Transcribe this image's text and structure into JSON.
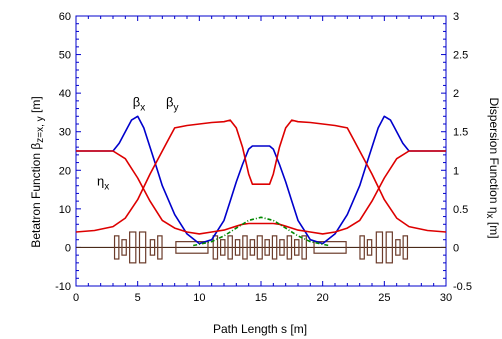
{
  "chart_data": {
    "type": "line",
    "xlabel": "Path Length s [m]",
    "ylabel_left": {
      "prefix": "Betatron Function β",
      "sub": "z=x, y",
      "suffix": " [m]"
    },
    "ylabel_right": {
      "prefix": "Dispersion Function η",
      "sub": "x",
      "suffix": " [m]"
    },
    "xlim": [
      0,
      30
    ],
    "ylim_left": [
      -10,
      60
    ],
    "ylim_right": [
      -0.5,
      3
    ],
    "x_ticks": [
      "0",
      "5",
      "10",
      "15",
      "20",
      "25",
      "30"
    ],
    "y_ticks_left": [
      "-10",
      "0",
      "10",
      "20",
      "30",
      "40",
      "50",
      "60"
    ],
    "y_ticks_right": [
      "-0.5",
      "0",
      "0.5",
      "1",
      "1.5",
      "2",
      "2.5",
      "3"
    ],
    "annotations": [
      {
        "base": "β",
        "sub": "x",
        "x": 4.6,
        "y": 36.5
      },
      {
        "base": "β",
        "sub": "y",
        "x": 7.3,
        "y": 36.5
      },
      {
        "base": "η",
        "sub": "x",
        "x": 1.7,
        "y": 16
      }
    ],
    "series": [
      {
        "key": "beta_x",
        "color": "#0000cc",
        "axis": "left",
        "x": [
          0,
          3,
          3.5,
          4,
          4.5,
          5,
          5.5,
          6,
          6.5,
          7,
          8,
          9,
          10,
          11,
          12,
          12.5,
          13,
          13.5,
          14,
          14.3,
          15,
          15.7,
          16,
          16.5,
          17,
          17.5,
          18,
          19,
          20,
          21,
          22,
          23,
          23.5,
          24,
          24.5,
          25,
          25.5,
          26,
          26.5,
          27,
          30
        ],
        "y": [
          25,
          25,
          27,
          30,
          33,
          34,
          31,
          26,
          21,
          16,
          8.5,
          3.5,
          1,
          2,
          7,
          12,
          17,
          21.5,
          25.5,
          26.3,
          26.3,
          26.3,
          25.5,
          21.5,
          17,
          12,
          7,
          2,
          1,
          3.5,
          8.5,
          16,
          21,
          26,
          31,
          34,
          33,
          30,
          27,
          25,
          25
        ]
      },
      {
        "key": "beta_y",
        "color": "#dd0000",
        "axis": "left",
        "x": [
          0,
          3,
          4,
          5,
          6,
          7,
          8,
          9,
          10,
          11,
          12,
          12.5,
          13,
          13.5,
          14,
          14.3,
          15,
          15.7,
          16,
          16.5,
          17,
          17.5,
          18,
          19,
          20,
          21,
          22,
          23,
          24,
          25,
          26,
          27,
          30
        ],
        "y": [
          25,
          25,
          23,
          18,
          12,
          7,
          5,
          4,
          3.5,
          4,
          4.5,
          5,
          5.5,
          6,
          6.2,
          6.2,
          6.2,
          6.2,
          6.2,
          6,
          5.5,
          5,
          4.5,
          4,
          3.5,
          4,
          5,
          7,
          12,
          18,
          23,
          25,
          25
        ]
      },
      {
        "key": "eta_x",
        "color": "#dd0000",
        "axis": "right",
        "x": [
          0,
          1.5,
          3,
          4,
          5,
          6,
          7,
          7.5,
          8,
          9,
          10,
          11,
          12,
          12.5,
          13,
          13.5,
          14,
          14.3,
          15,
          15.7,
          16,
          16.5,
          17,
          17.5,
          18,
          19,
          20,
          21,
          22,
          22.5,
          23,
          24,
          25,
          26,
          27,
          28.5,
          30
        ],
        "y": [
          0.2,
          0.22,
          0.27,
          0.38,
          0.62,
          0.95,
          1.25,
          1.4,
          1.55,
          1.58,
          1.6,
          1.62,
          1.63,
          1.65,
          1.55,
          1.3,
          0.95,
          0.82,
          0.82,
          0.82,
          0.95,
          1.3,
          1.55,
          1.65,
          1.63,
          1.62,
          1.6,
          1.58,
          1.55,
          1.4,
          1.25,
          0.95,
          0.62,
          0.38,
          0.27,
          0.22,
          0.2
        ]
      },
      {
        "key": "green_dashed",
        "color": "#008800",
        "axis": "left",
        "style": "dash-dot",
        "x": [
          9.5,
          10,
          11,
          12,
          13,
          14,
          15,
          16,
          17,
          18,
          19,
          20,
          20.5
        ],
        "y": [
          0.5,
          0.8,
          1.5,
          3,
          5,
          7,
          7.8,
          7,
          5,
          3,
          1.5,
          0.8,
          0.5
        ]
      }
    ],
    "lattice": {
      "baseline_y": 0,
      "elements": [
        {
          "s": 3.3,
          "w": 0.35,
          "h": 3
        },
        {
          "s": 3.9,
          "w": 0.35,
          "h": 2
        },
        {
          "s": 4.6,
          "w": 0.5,
          "h": 4
        },
        {
          "s": 5.4,
          "w": 0.5,
          "h": 4
        },
        {
          "s": 6.2,
          "w": 0.35,
          "h": 2
        },
        {
          "s": 6.8,
          "w": 0.35,
          "h": 3
        },
        {
          "s": 9.4,
          "w": 2.6,
          "h": 1.5
        },
        {
          "s": 11.3,
          "w": 0.35,
          "h": 3
        },
        {
          "s": 11.9,
          "w": 0.35,
          "h": 2
        },
        {
          "s": 12.5,
          "w": 0.35,
          "h": 3
        },
        {
          "s": 13.1,
          "w": 0.35,
          "h": 2
        },
        {
          "s": 13.7,
          "w": 0.35,
          "h": 3
        },
        {
          "s": 14.3,
          "w": 0.35,
          "h": 2
        },
        {
          "s": 14.9,
          "w": 0.4,
          "h": 3
        },
        {
          "s": 15.5,
          "w": 0.35,
          "h": 2
        },
        {
          "s": 16.1,
          "w": 0.35,
          "h": 3
        },
        {
          "s": 16.7,
          "w": 0.35,
          "h": 2
        },
        {
          "s": 17.3,
          "w": 0.35,
          "h": 3
        },
        {
          "s": 17.9,
          "w": 0.35,
          "h": 2
        },
        {
          "s": 18.5,
          "w": 0.35,
          "h": 3
        },
        {
          "s": 20.6,
          "w": 2.6,
          "h": 1.5
        },
        {
          "s": 23.2,
          "w": 0.35,
          "h": 3
        },
        {
          "s": 23.8,
          "w": 0.35,
          "h": 2
        },
        {
          "s": 24.6,
          "w": 0.5,
          "h": 4
        },
        {
          "s": 25.4,
          "w": 0.5,
          "h": 4
        },
        {
          "s": 26.1,
          "w": 0.35,
          "h": 2
        },
        {
          "s": 26.7,
          "w": 0.35,
          "h": 3
        }
      ]
    }
  }
}
